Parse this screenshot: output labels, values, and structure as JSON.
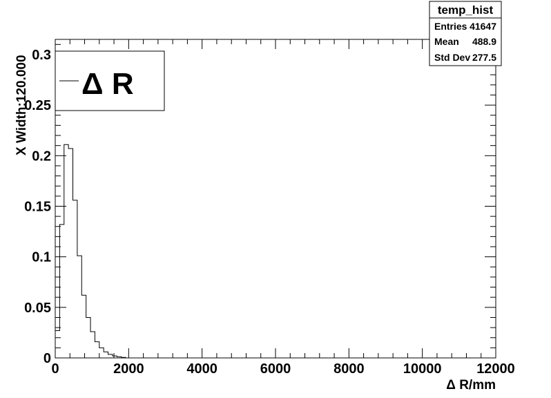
{
  "chart_data": {
    "type": "bar",
    "histogram": true,
    "title": "",
    "xlabel": "Δ R/mm",
    "ylabel": "X Width:120.000",
    "xlim": [
      0,
      12000
    ],
    "ylim": [
      0,
      0.315
    ],
    "bin_width": 120,
    "x_ticks": [
      "0",
      "2000",
      "4000",
      "6000",
      "8000",
      "10000",
      "12000"
    ],
    "y_ticks": [
      "0",
      "0.05",
      "0.1",
      "0.15",
      "0.2",
      "0.25",
      "0.3"
    ],
    "bins_start": [
      0,
      120,
      240,
      360,
      480,
      600,
      720,
      840,
      960,
      1080,
      1200,
      1320,
      1440,
      1560,
      1680,
      1800
    ],
    "values": [
      0.027,
      0.132,
      0.211,
      0.207,
      0.156,
      0.101,
      0.062,
      0.04,
      0.026,
      0.016,
      0.01,
      0.006,
      0.0035,
      0.002,
      0.0012,
      0.0005
    ],
    "legend": {
      "label": "Δ R",
      "position": "top-left"
    },
    "stats_box": {
      "title": "temp_hist",
      "rows": [
        {
          "label": "Entries",
          "value": "41647"
        },
        {
          "label": "Mean",
          "value": "488.9"
        },
        {
          "label": "Std Dev",
          "value": "277.5"
        }
      ]
    }
  }
}
